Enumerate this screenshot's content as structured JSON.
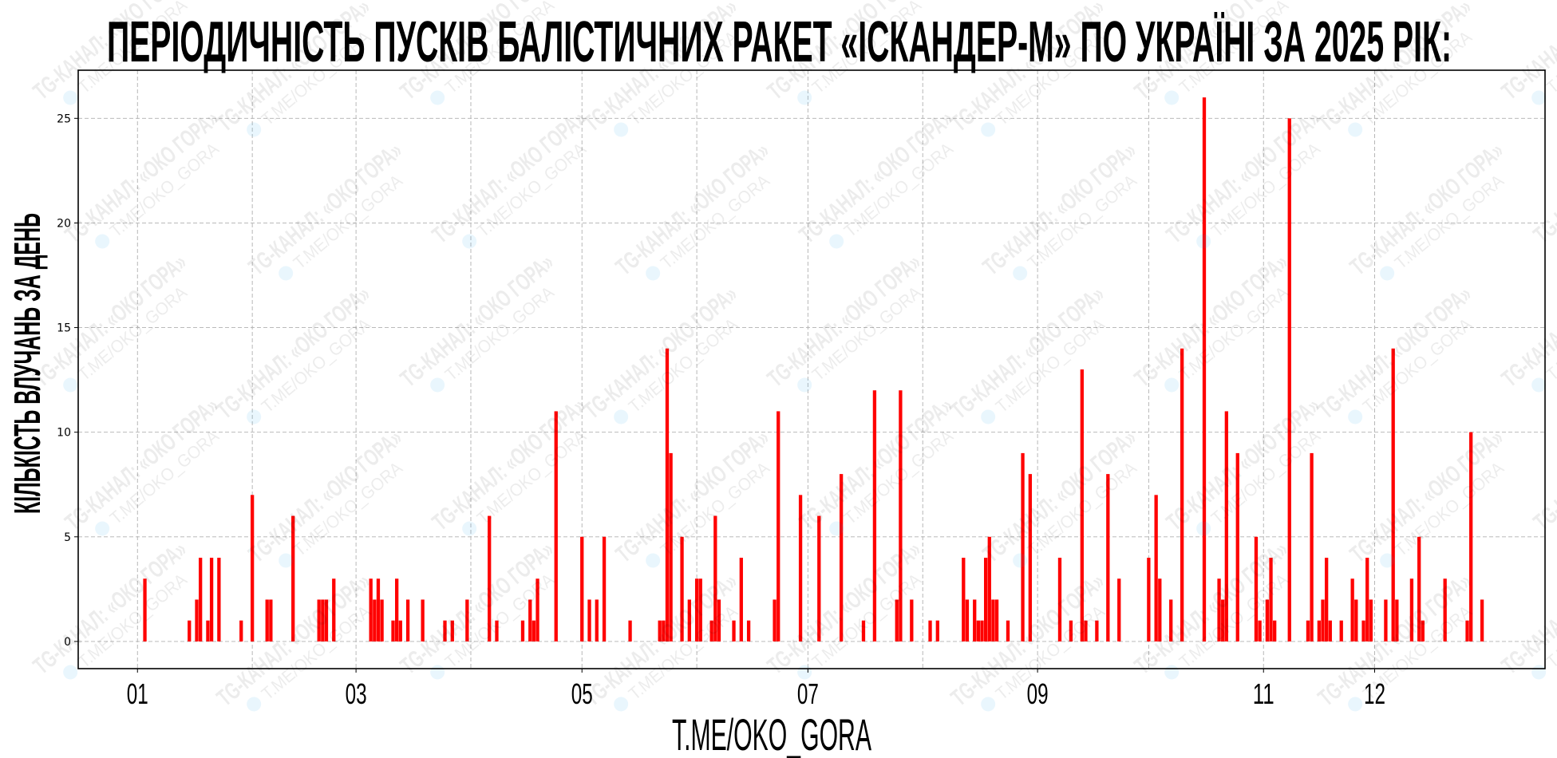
{
  "chart_data": {
    "type": "bar",
    "title": "ПЕРІОДИЧНІСТЬ ПУСКІВ БАЛІСТИЧНИХ РАКЕТ «ІСКАНДЕР-М» ПО УКРАЇНІ ЗА 2025 РІК:",
    "xlabel": "T.ME/OKO_GORA",
    "ylabel": "КІЛЬКІСТЬ ВЛУЧАНЬ ЗА ДЕНЬ",
    "color": "#ff0000",
    "grid": true,
    "xlim": [
      "2024-12-16",
      "2026-01-16"
    ],
    "ylim": [
      -1.3,
      27.3
    ],
    "y_ticks": [
      0,
      5,
      10,
      15,
      20,
      25
    ],
    "x_ticks": [
      {
        "date": "2025-01-01",
        "label": "01"
      },
      {
        "date": "2025-03-01",
        "label": "03"
      },
      {
        "date": "2025-05-01",
        "label": "05"
      },
      {
        "date": "2025-07-01",
        "label": "07"
      },
      {
        "date": "2025-09-01",
        "label": "09"
      },
      {
        "date": "2025-11-01",
        "label": "11"
      },
      {
        "date": "2025-12-01",
        "label": "12"
      }
    ],
    "points": [
      [
        "2025-01-03",
        3
      ],
      [
        "2025-01-15",
        1
      ],
      [
        "2025-01-17",
        2
      ],
      [
        "2025-01-18",
        4
      ],
      [
        "2025-01-20",
        1
      ],
      [
        "2025-01-21",
        4
      ],
      [
        "2025-01-23",
        4
      ],
      [
        "2025-01-29",
        1
      ],
      [
        "2025-02-01",
        7
      ],
      [
        "2025-02-05",
        2
      ],
      [
        "2025-02-06",
        2
      ],
      [
        "2025-02-12",
        6
      ],
      [
        "2025-02-19",
        2
      ],
      [
        "2025-02-20",
        2
      ],
      [
        "2025-02-21",
        2
      ],
      [
        "2025-02-23",
        3
      ],
      [
        "2025-03-05",
        3
      ],
      [
        "2025-03-06",
        2
      ],
      [
        "2025-03-07",
        3
      ],
      [
        "2025-03-08",
        2
      ],
      [
        "2025-03-11",
        1
      ],
      [
        "2025-03-12",
        3
      ],
      [
        "2025-03-13",
        1
      ],
      [
        "2025-03-15",
        2
      ],
      [
        "2025-03-19",
        2
      ],
      [
        "2025-03-25",
        1
      ],
      [
        "2025-03-27",
        1
      ],
      [
        "2025-03-31",
        2
      ],
      [
        "2025-04-06",
        6
      ],
      [
        "2025-04-08",
        1
      ],
      [
        "2025-04-15",
        1
      ],
      [
        "2025-04-17",
        2
      ],
      [
        "2025-04-18",
        1
      ],
      [
        "2025-04-19",
        3
      ],
      [
        "2025-04-24",
        11
      ],
      [
        "2025-05-01",
        5
      ],
      [
        "2025-05-03",
        2
      ],
      [
        "2025-05-05",
        2
      ],
      [
        "2025-05-07",
        5
      ],
      [
        "2025-05-14",
        1
      ],
      [
        "2025-05-22",
        1
      ],
      [
        "2025-05-23",
        1
      ],
      [
        "2025-05-24",
        14
      ],
      [
        "2025-05-25",
        9
      ],
      [
        "2025-05-28",
        5
      ],
      [
        "2025-05-30",
        2
      ],
      [
        "2025-06-01",
        3
      ],
      [
        "2025-06-02",
        3
      ],
      [
        "2025-06-05",
        1
      ],
      [
        "2025-06-06",
        6
      ],
      [
        "2025-06-07",
        2
      ],
      [
        "2025-06-11",
        1
      ],
      [
        "2025-06-13",
        4
      ],
      [
        "2025-06-15",
        1
      ],
      [
        "2025-06-22",
        2
      ],
      [
        "2025-06-23",
        11
      ],
      [
        "2025-06-29",
        7
      ],
      [
        "2025-07-04",
        6
      ],
      [
        "2025-07-10",
        8
      ],
      [
        "2025-07-16",
        1
      ],
      [
        "2025-07-19",
        12
      ],
      [
        "2025-07-25",
        2
      ],
      [
        "2025-07-26",
        12
      ],
      [
        "2025-07-29",
        2
      ],
      [
        "2025-08-03",
        1
      ],
      [
        "2025-08-05",
        1
      ],
      [
        "2025-08-12",
        4
      ],
      [
        "2025-08-13",
        2
      ],
      [
        "2025-08-15",
        2
      ],
      [
        "2025-08-16",
        1
      ],
      [
        "2025-08-17",
        1
      ],
      [
        "2025-08-18",
        4
      ],
      [
        "2025-08-19",
        5
      ],
      [
        "2025-08-20",
        2
      ],
      [
        "2025-08-21",
        2
      ],
      [
        "2025-08-24",
        1
      ],
      [
        "2025-08-28",
        9
      ],
      [
        "2025-08-30",
        8
      ],
      [
        "2025-09-07",
        4
      ],
      [
        "2025-09-10",
        1
      ],
      [
        "2025-09-13",
        13
      ],
      [
        "2025-09-14",
        1
      ],
      [
        "2025-09-17",
        1
      ],
      [
        "2025-09-20",
        8
      ],
      [
        "2025-09-23",
        3
      ],
      [
        "2025-10-01",
        4
      ],
      [
        "2025-10-03",
        7
      ],
      [
        "2025-10-04",
        3
      ],
      [
        "2025-10-07",
        2
      ],
      [
        "2025-10-10",
        14
      ],
      [
        "2025-10-16",
        26
      ],
      [
        "2025-10-20",
        3
      ],
      [
        "2025-10-21",
        2
      ],
      [
        "2025-10-22",
        11
      ],
      [
        "2025-10-25",
        9
      ],
      [
        "2025-10-30",
        5
      ],
      [
        "2025-10-31",
        1
      ],
      [
        "2025-11-02",
        2
      ],
      [
        "2025-11-03",
        4
      ],
      [
        "2025-11-04",
        1
      ],
      [
        "2025-11-08",
        25
      ],
      [
        "2025-11-13",
        1
      ],
      [
        "2025-11-14",
        9
      ],
      [
        "2025-11-16",
        1
      ],
      [
        "2025-11-17",
        2
      ],
      [
        "2025-11-18",
        4
      ],
      [
        "2025-11-19",
        1
      ],
      [
        "2025-11-22",
        1
      ],
      [
        "2025-11-25",
        3
      ],
      [
        "2025-11-26",
        2
      ],
      [
        "2025-11-28",
        1
      ],
      [
        "2025-11-29",
        4
      ],
      [
        "2025-11-30",
        2
      ],
      [
        "2025-12-04",
        2
      ],
      [
        "2025-12-06",
        14
      ],
      [
        "2025-12-07",
        2
      ],
      [
        "2025-12-11",
        3
      ],
      [
        "2025-12-13",
        5
      ],
      [
        "2025-12-14",
        1
      ],
      [
        "2025-12-20",
        3
      ],
      [
        "2025-12-26",
        1
      ],
      [
        "2025-12-27",
        10
      ],
      [
        "2025-12-30",
        2
      ]
    ]
  },
  "watermark": {
    "line1": "TG-КАНАЛ: «ОКО ГОРА»",
    "line2": "T.ME/OKO_GORA",
    "icon": "telegram-icon"
  }
}
